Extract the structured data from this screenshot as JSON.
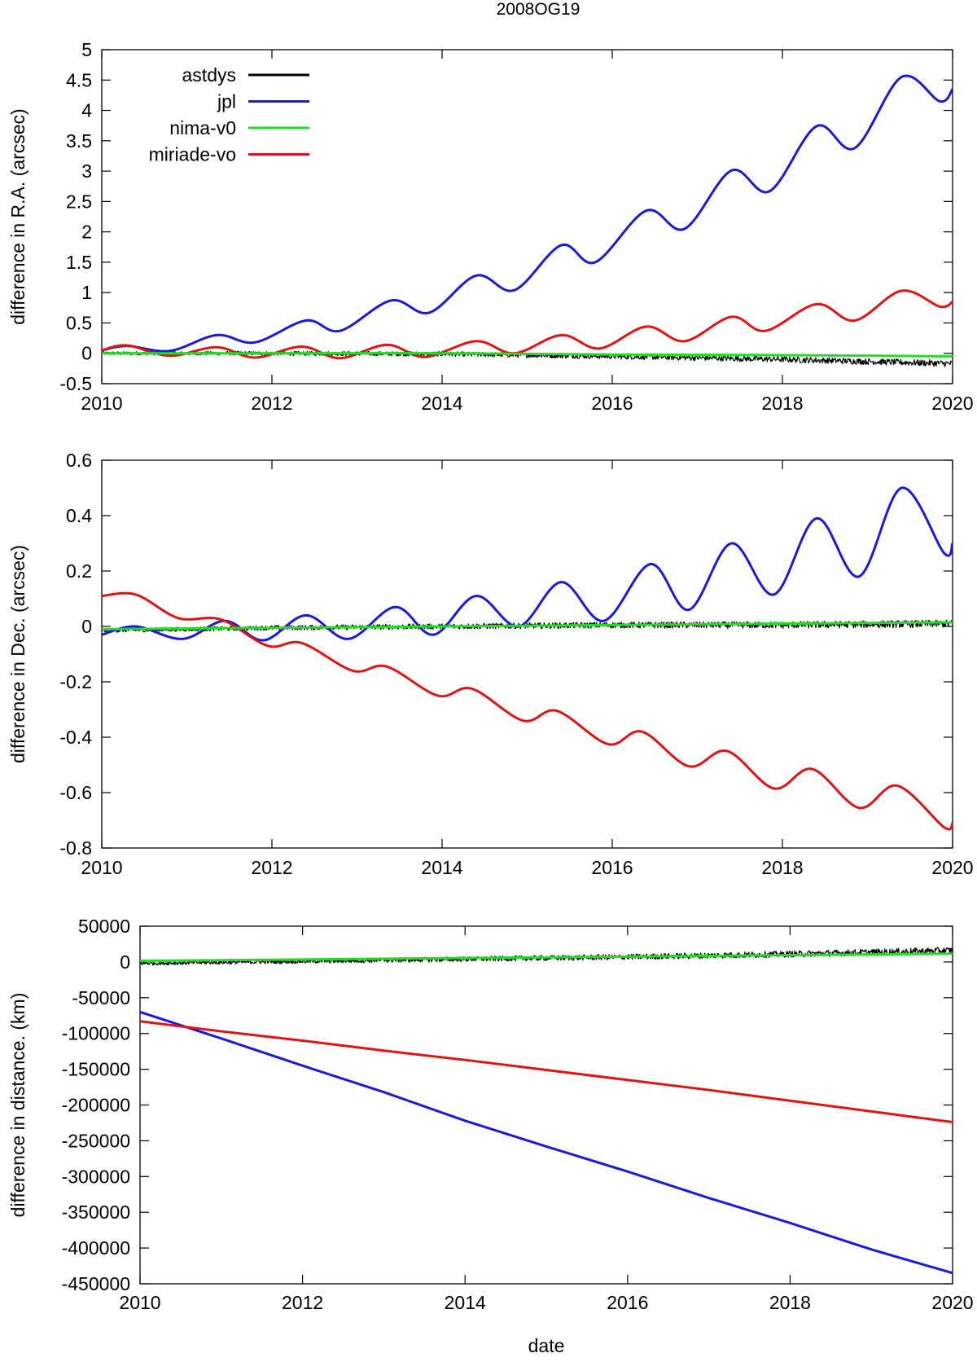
{
  "figure_title": "2008OG19",
  "colors": {
    "astdys": "#000000",
    "jpl": "#1a1ad9",
    "nima-v0": "#22dd22",
    "miriade-vo": "#e01414"
  },
  "chart_data": [
    {
      "type": "line",
      "id": "ra",
      "title": "2008OG19",
      "xlabel": "",
      "ylabel": "difference in R.A. (arcsec)",
      "xlim": [
        2010,
        2020
      ],
      "ylim": [
        -0.5,
        5
      ],
      "x_ticks": [
        2010,
        2012,
        2014,
        2016,
        2018,
        2020
      ],
      "x_tick_labels": [
        "2010",
        "2012",
        "2014",
        "2016",
        "2018",
        "2020"
      ],
      "y_ticks": [
        -0.5,
        0,
        0.5,
        1,
        1.5,
        2,
        2.5,
        3,
        3.5,
        4,
        4.5,
        5
      ],
      "y_tick_labels": [
        "-0.5",
        "0",
        "0.5",
        "1",
        "1.5",
        "2",
        "2.5",
        "3",
        "3.5",
        "4",
        "4.5",
        "5"
      ],
      "grid": false,
      "legend": {
        "position": "top-left",
        "entries": [
          "astdys",
          "jpl",
          "nima-v0",
          "miriade-vo"
        ]
      },
      "series": [
        {
          "name": "astdys",
          "color": "#000000",
          "noisy": true,
          "x": [
            2010,
            2012,
            2014,
            2016,
            2018,
            2020
          ],
          "y": [
            0.0,
            0.0,
            -0.01,
            -0.05,
            -0.1,
            -0.17
          ]
        },
        {
          "name": "jpl",
          "color": "#1a1ad9",
          "x": [
            2010,
            2010.3,
            2010.8,
            2011.35,
            2011.8,
            2012.4,
            2012.8,
            2013.4,
            2013.85,
            2014.4,
            2014.85,
            2015.4,
            2015.8,
            2016.4,
            2016.85,
            2017.4,
            2017.85,
            2018.4,
            2018.85,
            2019.4,
            2019.85,
            2020
          ],
          "y": [
            0.05,
            0.12,
            0.04,
            0.3,
            0.18,
            0.54,
            0.37,
            0.87,
            0.67,
            1.28,
            1.04,
            1.78,
            1.5,
            2.35,
            2.05,
            3.01,
            2.67,
            3.74,
            3.38,
            4.55,
            4.15,
            4.35
          ]
        },
        {
          "name": "nima-v0",
          "color": "#22dd22",
          "x": [
            2010,
            2012,
            2014,
            2016,
            2018,
            2020
          ],
          "y": [
            0.0,
            0.0,
            0.0,
            -0.02,
            -0.03,
            -0.05
          ]
        },
        {
          "name": "miriade-vo",
          "color": "#e01414",
          "x": [
            2010,
            2010.3,
            2010.8,
            2011.35,
            2011.8,
            2012.35,
            2012.8,
            2013.35,
            2013.8,
            2014.4,
            2014.85,
            2015.4,
            2015.85,
            2016.4,
            2016.85,
            2017.4,
            2017.8,
            2018.4,
            2018.85,
            2019.4,
            2019.85,
            2020
          ],
          "y": [
            0.05,
            0.13,
            -0.04,
            0.1,
            -0.07,
            0.11,
            -0.08,
            0.14,
            -0.06,
            0.2,
            0.0,
            0.3,
            0.08,
            0.44,
            0.2,
            0.6,
            0.37,
            0.81,
            0.54,
            1.03,
            0.77,
            0.85
          ]
        }
      ]
    },
    {
      "type": "line",
      "id": "dec",
      "xlabel": "",
      "ylabel": "difference in Dec. (arcsec)",
      "xlim": [
        2010,
        2020
      ],
      "ylim": [
        -0.8,
        0.6
      ],
      "x_ticks": [
        2010,
        2012,
        2014,
        2016,
        2018,
        2020
      ],
      "x_tick_labels": [
        "2010",
        "2012",
        "2014",
        "2016",
        "2018",
        "2020"
      ],
      "y_ticks": [
        -0.8,
        -0.6,
        -0.4,
        -0.2,
        0,
        0.2,
        0.4,
        0.6
      ],
      "y_tick_labels": [
        "-0.8",
        "-0.6",
        "-0.4",
        "-0.2",
        "0",
        "0.2",
        "0.4",
        "0.6"
      ],
      "grid": false,
      "series": [
        {
          "name": "astdys",
          "color": "#000000",
          "noisy": true,
          "x": [
            2010,
            2012,
            2014,
            2016,
            2018,
            2020
          ],
          "y": [
            -0.015,
            -0.005,
            0.0,
            0.005,
            0.005,
            0.01
          ]
        },
        {
          "name": "jpl",
          "color": "#1a1ad9",
          "x": [
            2010,
            2010.4,
            2010.95,
            2011.45,
            2011.9,
            2012.4,
            2012.9,
            2013.45,
            2013.9,
            2014.4,
            2014.9,
            2015.4,
            2015.9,
            2016.45,
            2016.9,
            2017.4,
            2017.9,
            2018.4,
            2018.9,
            2019.4,
            2019.9,
            2020
          ],
          "y": [
            -0.03,
            0.0,
            -0.045,
            0.02,
            -0.05,
            0.04,
            -0.045,
            0.07,
            -0.03,
            0.11,
            0.0,
            0.16,
            0.02,
            0.225,
            0.06,
            0.3,
            0.115,
            0.39,
            0.18,
            0.5,
            0.265,
            0.3
          ]
        },
        {
          "name": "nima-v0",
          "color": "#22dd22",
          "x": [
            2010,
            2012,
            2014,
            2016,
            2018,
            2020
          ],
          "y": [
            -0.01,
            -0.005,
            0.0,
            0.005,
            0.01,
            0.015
          ]
        },
        {
          "name": "miriade-vo",
          "color": "#e01414",
          "x": [
            2010,
            2010.4,
            2010.9,
            2011.4,
            2011.95,
            2012.35,
            2012.95,
            2013.35,
            2013.95,
            2014.35,
            2014.95,
            2015.35,
            2015.95,
            2016.35,
            2016.9,
            2017.35,
            2017.9,
            2018.35,
            2018.9,
            2019.35,
            2019.9,
            2020
          ],
          "y": [
            0.11,
            0.115,
            0.03,
            0.025,
            -0.07,
            -0.06,
            -0.16,
            -0.145,
            -0.25,
            -0.225,
            -0.34,
            -0.305,
            -0.425,
            -0.38,
            -0.505,
            -0.45,
            -0.585,
            -0.515,
            -0.655,
            -0.575,
            -0.725,
            -0.71
          ]
        }
      ]
    },
    {
      "type": "line",
      "id": "distance",
      "xlabel": "date",
      "ylabel": "difference in distance. (km)",
      "xlim": [
        2010,
        2020
      ],
      "ylim": [
        -450000,
        50000
      ],
      "x_ticks": [
        2010,
        2012,
        2014,
        2016,
        2018,
        2020
      ],
      "x_tick_labels": [
        "2010",
        "2012",
        "2014",
        "2016",
        "2018",
        "2020"
      ],
      "y_ticks": [
        -450000,
        -400000,
        -350000,
        -300000,
        -250000,
        -200000,
        -150000,
        -100000,
        -50000,
        0,
        50000
      ],
      "y_tick_labels": [
        "-450000",
        "-400000",
        "-350000",
        "-300000",
        "-250000",
        "-200000",
        "-150000",
        "-100000",
        "-50000",
        "0",
        "50000"
      ],
      "grid": false,
      "series": [
        {
          "name": "astdys",
          "color": "#000000",
          "noisy": true,
          "x": [
            2010,
            2012,
            2014,
            2016,
            2018,
            2020
          ],
          "y": [
            -2000,
            1000,
            4000,
            7000,
            11000,
            16000
          ]
        },
        {
          "name": "jpl",
          "color": "#1a1ad9",
          "x": [
            2010,
            2011,
            2012,
            2013,
            2014,
            2015,
            2016,
            2017,
            2018,
            2019,
            2020
          ],
          "y": [
            -70000,
            -107000,
            -145000,
            -182000,
            -222000,
            -258000,
            -293000,
            -330000,
            -365000,
            -402000,
            -435000
          ]
        },
        {
          "name": "nima-v0",
          "color": "#22dd22",
          "x": [
            2010,
            2012,
            2014,
            2016,
            2018,
            2020
          ],
          "y": [
            1500,
            3500,
            5500,
            7500,
            9500,
            11500
          ]
        },
        {
          "name": "miriade-vo",
          "color": "#e01414",
          "x": [
            2010,
            2011,
            2012,
            2013,
            2014,
            2015,
            2016,
            2017,
            2018,
            2019,
            2020
          ],
          "y": [
            -83000,
            -97000,
            -110000,
            -124000,
            -137000,
            -151000,
            -165000,
            -179000,
            -194000,
            -209000,
            -224000
          ]
        }
      ]
    }
  ]
}
